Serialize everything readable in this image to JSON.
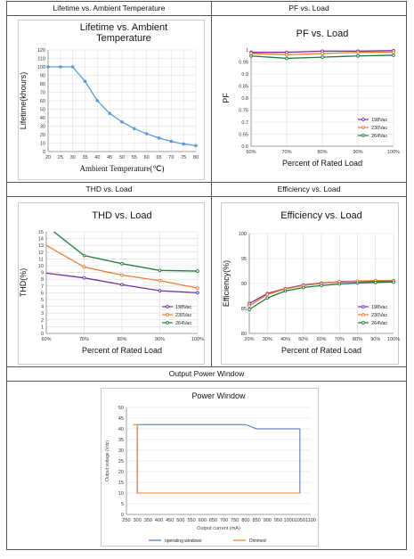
{
  "panels": {
    "lifetime": {
      "header": "Lifetime vs. Ambient Temperature"
    },
    "pf": {
      "header": "PF vs. Load"
    },
    "thd": {
      "header": "THD vs. Load"
    },
    "efficiency": {
      "header": "Efficiency vs. Load"
    },
    "power": {
      "header": "Output Power Window"
    }
  },
  "colors": {
    "c198": "#7030a0",
    "c230": "#ed7d31",
    "c264": "#1e7b3c",
    "lifetime": "#5b9bd5",
    "op": "#4472c4",
    "dim": "#ed7d31"
  },
  "chart_data": [
    {
      "id": "lifetime",
      "type": "line",
      "title_lines": [
        "Lifetime vs. Ambient",
        "Temperature"
      ],
      "xlabel": "Ambient Temperature(℃)",
      "ylabel": "Lifetime(khours)",
      "xlim": [
        20,
        80
      ],
      "ylim": [
        0,
        120
      ],
      "xticks": [
        20,
        25,
        30,
        35,
        40,
        45,
        50,
        55,
        60,
        65,
        70,
        75,
        80
      ],
      "yticks": [
        0,
        10,
        20,
        30,
        40,
        50,
        60,
        70,
        80,
        90,
        100,
        110,
        120
      ],
      "grid": true,
      "series": [
        {
          "x": [
            20,
            25,
            30,
            35,
            40,
            45,
            50,
            55,
            60,
            65,
            70,
            75,
            80
          ],
          "y": [
            100,
            100,
            100,
            83,
            60,
            45,
            35,
            27,
            21,
            16,
            12,
            9,
            7
          ],
          "color": "#5b9bd5"
        }
      ]
    },
    {
      "id": "pf",
      "type": "line",
      "title": "PF vs. Load",
      "xlabel": "Percent of Rated Load",
      "ylabel": "PF",
      "xlim": [
        60,
        100
      ],
      "ylim": [
        0.6,
        1.0
      ],
      "xtick_labels": [
        "60%",
        "70%",
        "80%",
        "90%",
        "100%"
      ],
      "xticks": [
        60,
        70,
        80,
        90,
        100
      ],
      "yticks": [
        0.6,
        0.65,
        0.7,
        0.75,
        0.8,
        0.85,
        0.9,
        0.95,
        1
      ],
      "ytick_labels": [
        "0.6",
        "0.65",
        "0.7",
        "0.75",
        "0.8",
        "0.85",
        "0.9",
        "0.95",
        "1"
      ],
      "legend": "bottom-right",
      "series": [
        {
          "name": "198Vac",
          "x": [
            60,
            70,
            80,
            90,
            100
          ],
          "y": [
            0.99,
            0.99,
            0.995,
            0.995,
            0.997
          ],
          "color": "#7030a0"
        },
        {
          "name": "230Vac",
          "x": [
            60,
            70,
            80,
            90,
            100
          ],
          "y": [
            0.985,
            0.98,
            0.985,
            0.99,
            0.99
          ],
          "color": "#ed7d31"
        },
        {
          "name": "264Vac",
          "x": [
            60,
            70,
            80,
            90,
            100
          ],
          "y": [
            0.975,
            0.965,
            0.97,
            0.975,
            0.978
          ],
          "color": "#1e7b3c"
        }
      ]
    },
    {
      "id": "thd",
      "type": "line",
      "title": "THD vs. Load",
      "xlabel": "Percent of Rated Load",
      "ylabel": "THD(%)",
      "xlim": [
        60,
        100
      ],
      "ylim": [
        0,
        15
      ],
      "xtick_labels": [
        "60%",
        "70%",
        "80%",
        "90%",
        "100%"
      ],
      "xticks": [
        60,
        70,
        80,
        90,
        100
      ],
      "yticks": [
        0,
        1,
        2,
        3,
        4,
        5,
        6,
        7,
        8,
        9,
        10,
        11,
        12,
        13,
        14,
        15
      ],
      "legend": "bottom-right",
      "series": [
        {
          "name": "198Vac",
          "x": [
            60,
            70,
            80,
            90,
            100
          ],
          "y": [
            8.9,
            8.2,
            7.2,
            6.3,
            6.0
          ],
          "color": "#7030a0"
        },
        {
          "name": "230Vac",
          "x": [
            60,
            70,
            80,
            90,
            100
          ],
          "y": [
            13.0,
            9.8,
            8.6,
            7.8,
            6.7
          ],
          "color": "#ed7d31"
        },
        {
          "name": "264Vac",
          "x": [
            62,
            70,
            80,
            90,
            100
          ],
          "y": [
            15.0,
            11.5,
            10.3,
            9.3,
            9.2
          ],
          "color": "#1e7b3c"
        }
      ]
    },
    {
      "id": "efficiency",
      "type": "line",
      "title": "Efficiency vs. Load",
      "xlabel": "Percent of Rated Load",
      "ylabel": "Efficiency(%)",
      "xlim": [
        20,
        100
      ],
      "ylim": [
        80,
        100
      ],
      "xtick_labels": [
        "20%",
        "30%",
        "40%",
        "50%",
        "60%",
        "70%",
        "80%",
        "90%",
        "100%"
      ],
      "xticks": [
        20,
        30,
        40,
        50,
        60,
        70,
        80,
        90,
        100
      ],
      "yticks": [
        80,
        85,
        90,
        95,
        100
      ],
      "legend": "bottom-right",
      "series": [
        {
          "name": "198Vac",
          "x": [
            20,
            30,
            40,
            50,
            60,
            70,
            80,
            90,
            100
          ],
          "y": [
            86.0,
            88.0,
            89.0,
            89.7,
            90.1,
            90.3,
            90.4,
            90.4,
            90.4
          ],
          "color": "#7030a0"
        },
        {
          "name": "230Vac",
          "x": [
            20,
            30,
            40,
            50,
            60,
            70,
            80,
            90,
            100
          ],
          "y": [
            85.5,
            87.8,
            88.9,
            89.6,
            90.0,
            90.4,
            90.5,
            90.6,
            90.6
          ],
          "color": "#ed7d31"
        },
        {
          "name": "264Vac",
          "x": [
            20,
            30,
            40,
            50,
            60,
            70,
            80,
            90,
            100
          ],
          "y": [
            84.8,
            87.1,
            88.5,
            89.2,
            89.6,
            89.9,
            90.1,
            90.2,
            90.3
          ],
          "color": "#1e7b3c"
        }
      ]
    },
    {
      "id": "power",
      "type": "line",
      "title": "Power Window",
      "xlabel": "Output current (mA)",
      "ylabel": "Output voltage (Vdc)",
      "xlim": [
        250,
        1100
      ],
      "ylim": [
        0,
        50
      ],
      "xticks": [
        250,
        300,
        350,
        400,
        450,
        500,
        550,
        600,
        650,
        700,
        750,
        800,
        850,
        900,
        950,
        1000,
        1050,
        1100
      ],
      "yticks": [
        0,
        5,
        10,
        15,
        20,
        25,
        30,
        35,
        40,
        45,
        50
      ],
      "legend": "bottom",
      "series": [
        {
          "name": "operating windows",
          "x": [
            300,
            300,
            800,
            850,
            1050,
            1050,
            300
          ],
          "y": [
            10,
            42,
            42,
            40,
            40,
            10,
            10
          ],
          "color": "#4472c4"
        },
        {
          "name": "Dimmed",
          "x": [
            280,
            300,
            300,
            1050
          ],
          "y": [
            42,
            42,
            10,
            10
          ],
          "color": "#ed7d31"
        }
      ]
    }
  ]
}
